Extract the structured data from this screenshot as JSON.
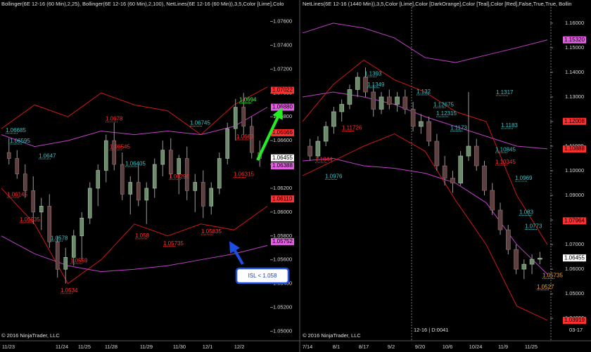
{
  "panels": [
    {
      "header": "Bollinger(6E 12-16 (60 Min),2,25), Bollinger(6E 12-16 (60 Min),2,100), NetLines(6E 12-16 (60 Min)),3,5,Color [Lime],Colo",
      "footer": "© 2016 NinjaTrader, LLC",
      "ylim": [
        1.0492,
        1.0778
      ],
      "yticks": [
        {
          "value": 1.076,
          "label": "1.07600"
        },
        {
          "value": 1.074,
          "label": "1.07400"
        },
        {
          "value": 1.072,
          "label": "1.07200"
        },
        {
          "value": 1.07,
          "label": "1.07000"
        },
        {
          "value": 1.068,
          "label": "1.06800"
        },
        {
          "value": 1.066,
          "label": "1.06600"
        },
        {
          "value": 1.064,
          "label": "1.06400"
        },
        {
          "value": 1.062,
          "label": "1.06200"
        },
        {
          "value": 1.06,
          "label": "1.06000"
        },
        {
          "value": 1.058,
          "label": "1.05800"
        },
        {
          "value": 1.056,
          "label": "1.05600"
        },
        {
          "value": 1.054,
          "label": "1.05400"
        },
        {
          "value": 1.052,
          "label": "1.05200"
        },
        {
          "value": 1.05,
          "label": "1.05000"
        }
      ],
      "x_labels": [
        "11/23",
        "11/24",
        "11/25",
        "11/28",
        "11/29",
        "11/30",
        "12/1",
        "12/2"
      ],
      "candles": [
        [
          1.065,
          1.0662,
          1.064,
          1.0645
        ],
        [
          1.0645,
          1.0652,
          1.0628,
          1.0632
        ],
        [
          1.0632,
          1.064,
          1.0612,
          1.0618
        ],
        [
          1.0618,
          1.063,
          1.059,
          1.06
        ],
        [
          1.06,
          1.0612,
          1.0585,
          1.0605
        ],
        [
          1.0605,
          1.0615,
          1.057,
          1.0575
        ],
        [
          1.0575,
          1.058,
          1.0545,
          1.0552
        ],
        [
          1.0552,
          1.057,
          1.054,
          1.0562
        ],
        [
          1.0562,
          1.0585,
          1.0555,
          1.058
        ],
        [
          1.058,
          1.06,
          1.056,
          1.0595
        ],
        [
          1.0595,
          1.0625,
          1.059,
          1.062
        ],
        [
          1.062,
          1.064,
          1.0605,
          1.0635
        ],
        [
          1.0635,
          1.0665,
          1.0625,
          1.066
        ],
        [
          1.066,
          1.0675,
          1.0635,
          1.064
        ],
        [
          1.064,
          1.065,
          1.061,
          1.0615
        ],
        [
          1.0615,
          1.063,
          1.0598,
          1.0625
        ],
        [
          1.0625,
          1.064,
          1.0605,
          1.061
        ],
        [
          1.061,
          1.0625,
          1.059,
          1.062
        ],
        [
          1.062,
          1.0645,
          1.0612,
          1.064
        ],
        [
          1.064,
          1.066,
          1.063,
          1.0652
        ],
        [
          1.0652,
          1.0662,
          1.0628,
          1.0632
        ],
        [
          1.0632,
          1.0648,
          1.0615,
          1.0645
        ],
        [
          1.0645,
          1.0655,
          1.061,
          1.0618
        ],
        [
          1.0618,
          1.0632,
          1.06,
          1.0625
        ],
        [
          1.0625,
          1.0635,
          1.0595,
          1.0605
        ],
        [
          1.0605,
          1.0625,
          1.0598,
          1.062
        ],
        [
          1.062,
          1.065,
          1.0615,
          1.0645
        ],
        [
          1.0645,
          1.0675,
          1.064,
          1.067
        ],
        [
          1.067,
          1.0695,
          1.066,
          1.0688
        ],
        [
          1.0688,
          1.07,
          1.0665,
          1.0672
        ],
        [
          1.0672,
          1.068,
          1.0645,
          1.065
        ],
        [
          1.065,
          1.066,
          1.0638,
          1.0645
        ]
      ],
      "bands": [
        {
          "color": "#d01818",
          "values": [
            1.067,
            1.069,
            1.068,
            1.07,
            1.069,
            1.0685,
            1.0665,
            1.069,
            1.0705
          ]
        },
        {
          "color": "#d01818",
          "values": [
            1.062,
            1.059,
            1.054,
            1.056,
            1.059,
            1.058,
            1.059,
            1.0585,
            1.0605
          ]
        },
        {
          "color": "#c040c8",
          "values": [
            1.0665,
            1.0655,
            1.066,
            1.0668,
            1.0665,
            1.0668,
            1.0665,
            1.0672,
            1.0688
          ]
        },
        {
          "color": "#c040c8",
          "values": [
            1.058,
            1.0565,
            1.0555,
            1.055,
            1.0552,
            1.0555,
            1.056,
            1.0565,
            1.0572
          ]
        }
      ],
      "levels": [
        {
          "value": 1.06685,
          "label": "1.06685",
          "color": "#40c0c0"
        },
        {
          "value": 1.06595,
          "label": "1.06595",
          "color": "#40c0c0"
        },
        {
          "value": 1.0647,
          "label": "1.0647",
          "color": "#40c0c0"
        },
        {
          "value": 1.06145,
          "label": "1.06145",
          "color": "#ff3030"
        },
        {
          "value": 1.05935,
          "label": "1.05935",
          "color": "#ff3030"
        },
        {
          "value": 1.0578,
          "label": "1.0578",
          "color": "#40c0c0"
        },
        {
          "value": 1.0559,
          "label": "1.0559",
          "color": "#ff3030"
        },
        {
          "value": 1.0534,
          "label": "1.0534",
          "color": "#ff3030"
        },
        {
          "value": 1.0678,
          "label": "1.0678",
          "color": "#ff3030"
        },
        {
          "value": 1.06545,
          "label": "1.06545",
          "color": "#ff3030"
        },
        {
          "value": 1.06405,
          "label": "1.06405",
          "color": "#40c0c0"
        },
        {
          "value": 1.058,
          "label": "1.058",
          "color": "#ff3030"
        },
        {
          "value": 1.05735,
          "label": "1.05735",
          "color": "#ff3030"
        },
        {
          "value": 1.06745,
          "label": "1.06745",
          "color": "#40c0c0"
        },
        {
          "value": 1.06296,
          "label": "1.06296",
          "color": "#ff3030"
        },
        {
          "value": 1.05835,
          "label": "1.05835",
          "color": "#ff3030"
        },
        {
          "value": 1.0694,
          "label": "1.0694",
          "color": "#40ff40"
        },
        {
          "value": 1.0663,
          "label": "1.0663",
          "color": "#ff3030"
        },
        {
          "value": 1.06315,
          "label": "1.06315",
          "color": "#ff3030"
        }
      ],
      "price_tags": [
        {
          "value": 1.07022,
          "label": "1.07022",
          "color": "#ff3030"
        },
        {
          "value": 1.0688,
          "label": "1.06880",
          "color": "#e060e0"
        },
        {
          "value": 1.06666,
          "label": "1.06666",
          "color": "#ff3030"
        },
        {
          "value": 1.06455,
          "label": "1.06455",
          "color": "#ffffff"
        },
        {
          "value": 1.06388,
          "label": "1.06388",
          "color": "#e060e0"
        },
        {
          "value": 1.0611,
          "label": "1.06110",
          "color": "#ff3030"
        },
        {
          "value": 1.05752,
          "label": "1.05752",
          "color": "#e060e0"
        }
      ]
    },
    {
      "header": "NetLines(6E 12-16 (1440 Min)),3,5,Color [Lime],Color [DarkOrange],Color [Teal],Color [Red],False,True,True, Bollin",
      "footer": "© 2016 NinjaTrader, LLC",
      "footer2": "12-16 | D:0041",
      "footer3": "03-17",
      "ylim": [
        1.0309,
        1.1694
      ],
      "yticks": [
        {
          "value": 1.16,
          "label": "1.16000"
        },
        {
          "value": 1.15,
          "label": "1.15000"
        },
        {
          "value": 1.14,
          "label": "1.14000"
        },
        {
          "value": 1.13,
          "label": "1.13000"
        },
        {
          "value": 1.12,
          "label": "1.12000"
        },
        {
          "value": 1.11,
          "label": "1.11000"
        },
        {
          "value": 1.1,
          "label": "1.10000"
        },
        {
          "value": 1.09,
          "label": "1.09000"
        },
        {
          "value": 1.08,
          "label": "1.08000"
        },
        {
          "value": 1.07,
          "label": "1.07000"
        },
        {
          "value": 1.06,
          "label": "1.06000"
        },
        {
          "value": 1.05,
          "label": "1.05000"
        },
        {
          "value": 1.04,
          "label": "1.04000"
        }
      ],
      "x_labels": [
        "7/14",
        "8/1",
        "8/17",
        "9/2",
        "9/20",
        "10/6",
        "10/24",
        "11/9",
        "11/25"
      ],
      "candles": [
        [
          1.11,
          1.113,
          1.104,
          1.106
        ],
        [
          1.106,
          1.114,
          1.105,
          1.112
        ],
        [
          1.112,
          1.12,
          1.11,
          1.118
        ],
        [
          1.118,
          1.126,
          1.115,
          1.124
        ],
        [
          1.124,
          1.129,
          1.12,
          1.127
        ],
        [
          1.127,
          1.135,
          1.125,
          1.133
        ],
        [
          1.133,
          1.14,
          1.13,
          1.138
        ],
        [
          1.138,
          1.142,
          1.13,
          1.132
        ],
        [
          1.132,
          1.135,
          1.122,
          1.125
        ],
        [
          1.125,
          1.132,
          1.123,
          1.13
        ],
        [
          1.13,
          1.133,
          1.125,
          1.127
        ],
        [
          1.127,
          1.132,
          1.124,
          1.13
        ],
        [
          1.13,
          1.133,
          1.123,
          1.125
        ],
        [
          1.125,
          1.128,
          1.116,
          1.118
        ],
        [
          1.118,
          1.123,
          1.115,
          1.12
        ],
        [
          1.12,
          1.122,
          1.11,
          1.112
        ],
        [
          1.112,
          1.115,
          1.1,
          1.102
        ],
        [
          1.102,
          1.106,
          1.094,
          1.097
        ],
        [
          1.097,
          1.1,
          1.091,
          1.095
        ],
        [
          1.095,
          1.108,
          1.094,
          1.106
        ],
        [
          1.106,
          1.132,
          1.104,
          1.11
        ],
        [
          1.11,
          1.113,
          1.1,
          1.102
        ],
        [
          1.102,
          1.104,
          1.09,
          1.092
        ],
        [
          1.092,
          1.095,
          1.082,
          1.084
        ],
        [
          1.084,
          1.087,
          1.074,
          1.076
        ],
        [
          1.076,
          1.078,
          1.066,
          1.068
        ],
        [
          1.068,
          1.07,
          1.058,
          1.06
        ],
        [
          1.06,
          1.064,
          1.056,
          1.062
        ],
        [
          1.062,
          1.066,
          1.058,
          1.064
        ],
        [
          1.064,
          1.067,
          1.062,
          1.0645
        ]
      ],
      "bands": [
        {
          "color": "#c040c8",
          "values": [
            1.156,
            1.16,
            1.158,
            1.154,
            1.146,
            1.144,
            1.147,
            1.15,
            1.1532
          ]
        },
        {
          "color": "#c040c8",
          "values": [
            1.13,
            1.132,
            1.13,
            1.127,
            1.122,
            1.118,
            1.114,
            1.11,
            1.1089
          ]
        },
        {
          "color": "#c040c8",
          "values": [
            1.104,
            1.105,
            1.102,
            1.101,
            1.099,
            1.095,
            1.087,
            1.07,
            1.058
          ]
        },
        {
          "color": "#d01818",
          "values": [
            1.12,
            1.135,
            1.145,
            1.137,
            1.132,
            1.124,
            1.12,
            1.09,
            1.07
          ]
        },
        {
          "color": "#d01818",
          "values": [
            1.098,
            1.104,
            1.11,
            1.115,
            1.108,
            1.088,
            1.07,
            1.045,
            1.0392
          ]
        }
      ],
      "levels": [
        {
          "value": 1.1393,
          "label": "1.1393",
          "color": "#40c0c0"
        },
        {
          "value": 1.1349,
          "label": "1.1349",
          "color": "#40c0c0"
        },
        {
          "value": 1.132,
          "label": "1.132",
          "color": "#40c0c0"
        },
        {
          "value": 1.12675,
          "label": "1.12675",
          "color": "#40c0c0"
        },
        {
          "value": 1.12315,
          "label": "1.12315",
          "color": "#40c0c0"
        },
        {
          "value": 1.1317,
          "label": "1.1317",
          "color": "#40c0c0"
        },
        {
          "value": 1.1173,
          "label": "1.1173",
          "color": "#40c0c0"
        },
        {
          "value": 1.11726,
          "label": "1.11726",
          "color": "#ff3030"
        },
        {
          "value": 1.1044,
          "label": "1.1044",
          "color": "#ff3030"
        },
        {
          "value": 1.0976,
          "label": "1.0976",
          "color": "#40c0c0"
        },
        {
          "value": 1.1183,
          "label": "1.1183",
          "color": "#40c0c0"
        },
        {
          "value": 1.10845,
          "label": "1.10845",
          "color": "#40c0c0"
        },
        {
          "value": 1.10345,
          "label": "1.10345",
          "color": "#ff3030"
        },
        {
          "value": 1.0969,
          "label": "1.0969",
          "color": "#40c0c0"
        },
        {
          "value": 1.083,
          "label": "1.083",
          "color": "#40c0c0"
        },
        {
          "value": 1.0773,
          "label": "1.0773",
          "color": "#40c0c0"
        },
        {
          "value": 1.05735,
          "label": "1.05735",
          "color": "#ffa020"
        },
        {
          "value": 1.0527,
          "label": "1.0527",
          "color": "#ffa020"
        }
      ],
      "price_tags": [
        {
          "value": 1.1532,
          "label": "1.15320",
          "color": "#e060e0"
        },
        {
          "value": 1.12008,
          "label": "1.12008",
          "color": "#ff3030"
        },
        {
          "value": 1.10888,
          "label": "1.10888",
          "color": "#ff3030"
        },
        {
          "value": 1.07964,
          "label": "1.07964",
          "color": "#ff3030"
        },
        {
          "value": 1.06455,
          "label": "1.06455",
          "color": "#ffffff"
        },
        {
          "value": 1.03919,
          "label": "1.03919",
          "color": "#ff3030"
        }
      ]
    }
  ],
  "annotation": "ISL < 1.058"
}
